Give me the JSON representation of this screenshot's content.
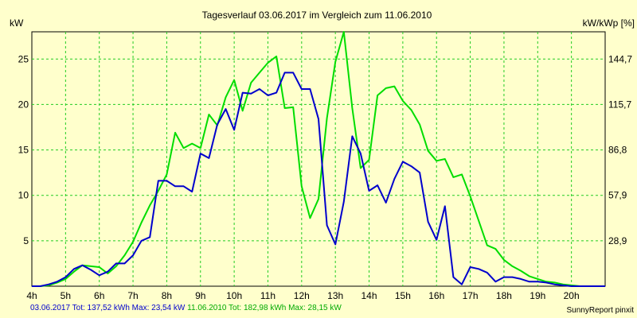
{
  "chart_data": {
    "type": "line",
    "title": "Tagesverlauf 03.06.2017 im Vergleich zum 11.06.2010",
    "left_unit": "kW",
    "right_unit": "kW/kWp [%]",
    "x_ticks": [
      "4h",
      "5h",
      "6h",
      "7h",
      "8h",
      "9h",
      "10h",
      "11h",
      "12h",
      "13h",
      "14h",
      "15h",
      "16h",
      "17h",
      "18h",
      "19h",
      "20h"
    ],
    "xlim": [
      4,
      21
    ],
    "ylim": [
      0,
      28
    ],
    "y_ticks": [
      5,
      10,
      15,
      20,
      25
    ],
    "y_right_ticks": [
      "28,9",
      "57,9",
      "86,8",
      "115,7",
      "144,7"
    ],
    "grid": true,
    "colors": {
      "blue": "#0000cc",
      "green": "#00dd00",
      "grid": "#22cc22"
    },
    "series": [
      {
        "name": "03.06.2017",
        "color": "#0000cc",
        "x": [
          4.0,
          4.25,
          4.5,
          4.75,
          5.0,
          5.25,
          5.5,
          5.75,
          6.0,
          6.25,
          6.5,
          6.75,
          7.0,
          7.25,
          7.5,
          7.75,
          8.0,
          8.25,
          8.5,
          8.75,
          9.0,
          9.25,
          9.5,
          9.75,
          10.0,
          10.25,
          10.5,
          10.75,
          11.0,
          11.25,
          11.5,
          11.75,
          12.0,
          12.25,
          12.5,
          12.75,
          13.0,
          13.25,
          13.5,
          13.75,
          14.0,
          14.25,
          14.5,
          14.75,
          15.0,
          15.25,
          15.5,
          15.75,
          16.0,
          16.25,
          16.5,
          16.75,
          17.0,
          17.25,
          17.5,
          17.75,
          18.0,
          18.25,
          18.5,
          18.75,
          19.0,
          19.25,
          19.5,
          19.75,
          20.0,
          20.25,
          20.5,
          20.75,
          21.0
        ],
        "values": [
          0,
          0,
          0.2,
          0.5,
          1.0,
          1.9,
          2.3,
          1.8,
          1.2,
          1.6,
          2.5,
          2.5,
          3.4,
          5.0,
          5.4,
          11.6,
          11.6,
          11.0,
          11.0,
          10.4,
          14.6,
          14.1,
          17.8,
          19.5,
          17.2,
          21.3,
          21.2,
          21.7,
          21.0,
          21.3,
          23.5,
          23.5,
          21.7,
          21.7,
          18.4,
          6.7,
          4.6,
          9.3,
          16.5,
          14.6,
          10.5,
          11.1,
          9.2,
          11.8,
          13.7,
          13.2,
          12.5,
          7.1,
          5.1,
          8.8,
          1.0,
          0.2,
          2.1,
          1.9,
          1.5,
          0.5,
          1.0,
          1.0,
          0.8,
          0.5,
          0.5,
          0.4,
          0.2,
          0.1,
          0,
          0,
          0,
          0,
          0
        ]
      },
      {
        "name": "11.06.2010",
        "color": "#00dd00",
        "x": [
          4.0,
          4.25,
          4.5,
          4.75,
          5.0,
          5.25,
          5.5,
          5.75,
          6.0,
          6.25,
          6.5,
          6.75,
          7.0,
          7.25,
          7.5,
          7.75,
          8.0,
          8.25,
          8.5,
          8.75,
          9.0,
          9.25,
          9.5,
          9.75,
          10.0,
          10.25,
          10.5,
          10.75,
          11.0,
          11.25,
          11.5,
          11.75,
          12.0,
          12.25,
          12.5,
          12.75,
          13.0,
          13.25,
          13.5,
          13.75,
          14.0,
          14.25,
          14.5,
          14.75,
          15.0,
          15.25,
          15.5,
          15.75,
          16.0,
          16.25,
          16.5,
          16.75,
          17.0,
          17.25,
          17.5,
          17.75,
          18.0,
          18.25,
          18.5,
          18.75,
          19.0,
          19.25,
          19.5,
          19.75,
          20.0,
          20.25,
          20.5,
          20.75,
          21.0
        ],
        "values": [
          0,
          0,
          0.1,
          0.4,
          0.8,
          1.6,
          2.3,
          2.2,
          2.1,
          1.4,
          2.2,
          3.4,
          4.9,
          7.0,
          8.9,
          10.5,
          12.3,
          16.9,
          15.2,
          15.7,
          15.2,
          18.9,
          17.7,
          20.8,
          22.7,
          19.3,
          22.4,
          23.5,
          24.6,
          25.3,
          19.6,
          19.7,
          11.0,
          7.5,
          9.6,
          18.5,
          24.7,
          28.0,
          19.6,
          13.0,
          13.9,
          21.0,
          21.8,
          22.0,
          20.4,
          19.4,
          17.8,
          14.9,
          13.8,
          14.0,
          12.0,
          12.3,
          9.9,
          7.2,
          4.5,
          4.1,
          2.9,
          2.2,
          1.7,
          1.1,
          0.8,
          0.5,
          0.4,
          0.2,
          0.1,
          0,
          0,
          0,
          0
        ]
      }
    ]
  },
  "footer": {
    "blue_label": "03.06.2017 Tot: 137,52 kWh Max: 23,54 kW",
    "green_label": "11.06.2010 Tot: 182,98 kWh Max: 28,15 kW",
    "credit": "SunnyReport pinxit"
  }
}
